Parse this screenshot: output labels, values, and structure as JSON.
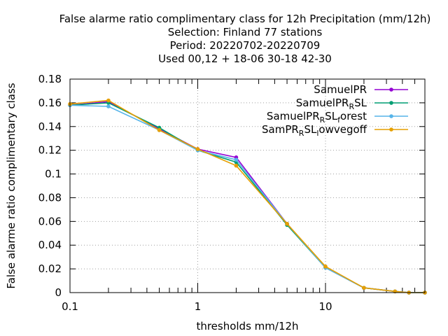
{
  "chart_data": {
    "type": "line",
    "title_lines": [
      "False alarme ratio complimentary class  for 12h Precipitation (mm/12h)",
      "Selection: Finland     77 stations",
      "Period: 20220702-20220709",
      "Used  00,12  + 18-06 30-18 42-30"
    ],
    "xlabel": "thresholds mm/12h",
    "ylabel": "False alarme ratio complimentary class",
    "x_scale": "log",
    "xlim": [
      0.1,
      60
    ],
    "ylim": [
      0,
      0.18
    ],
    "x_ticks": [
      {
        "value": 0.1,
        "label": "0.1"
      },
      {
        "value": 1,
        "label": "1"
      },
      {
        "value": 10,
        "label": "10"
      }
    ],
    "y_ticks": [
      {
        "value": 0,
        "label": "0"
      },
      {
        "value": 0.02,
        "label": "0.02"
      },
      {
        "value": 0.04,
        "label": "0.04"
      },
      {
        "value": 0.06,
        "label": "0.06"
      },
      {
        "value": 0.08,
        "label": "0.08"
      },
      {
        "value": 0.1,
        "label": "0.1"
      },
      {
        "value": 0.12,
        "label": "0.12"
      },
      {
        "value": 0.14,
        "label": "0.14"
      },
      {
        "value": 0.16,
        "label": "0.16"
      },
      {
        "value": 0.18,
        "label": "0.18"
      }
    ],
    "grid": true,
    "legend_position": "top-right",
    "x": [
      0.1,
      0.2,
      0.5,
      1,
      2,
      5,
      10,
      20,
      35,
      45,
      60
    ],
    "series": [
      {
        "legend": [
          {
            "t": "SamuelPR"
          }
        ],
        "color": "#9400d3",
        "values": [
          0.158,
          0.161,
          0.138,
          0.121,
          0.114,
          0.058,
          0.021,
          0.004,
          0.001,
          0.0,
          0.0
        ]
      },
      {
        "legend": [
          {
            "t": "SamuelPR"
          },
          {
            "t": "R",
            "s": "sub"
          },
          {
            "t": "SL"
          }
        ],
        "color": "#009e73",
        "values": [
          0.158,
          0.16,
          0.139,
          0.12,
          0.11,
          0.057,
          0.021,
          0.004,
          0.001,
          0.0,
          0.0
        ]
      },
      {
        "legend": [
          {
            "t": "SamuelPR"
          },
          {
            "t": "R",
            "s": "sub"
          },
          {
            "t": "SL"
          },
          {
            "t": "f",
            "s": "sub"
          },
          {
            "t": "orest"
          }
        ],
        "color": "#56b4e9",
        "values": [
          0.158,
          0.157,
          0.137,
          0.12,
          0.112,
          0.058,
          0.021,
          0.004,
          0.001,
          0.0,
          0.0
        ]
      },
      {
        "legend": [
          {
            "t": "SamPR"
          },
          {
            "t": "R",
            "s": "sub"
          },
          {
            "t": "SL"
          },
          {
            "t": "l",
            "s": "sub"
          },
          {
            "t": "owvegoff"
          }
        ],
        "color": "#e69f00",
        "values": [
          0.159,
          0.162,
          0.137,
          0.121,
          0.107,
          0.058,
          0.022,
          0.004,
          0.001,
          0.0,
          0.0
        ]
      }
    ]
  }
}
